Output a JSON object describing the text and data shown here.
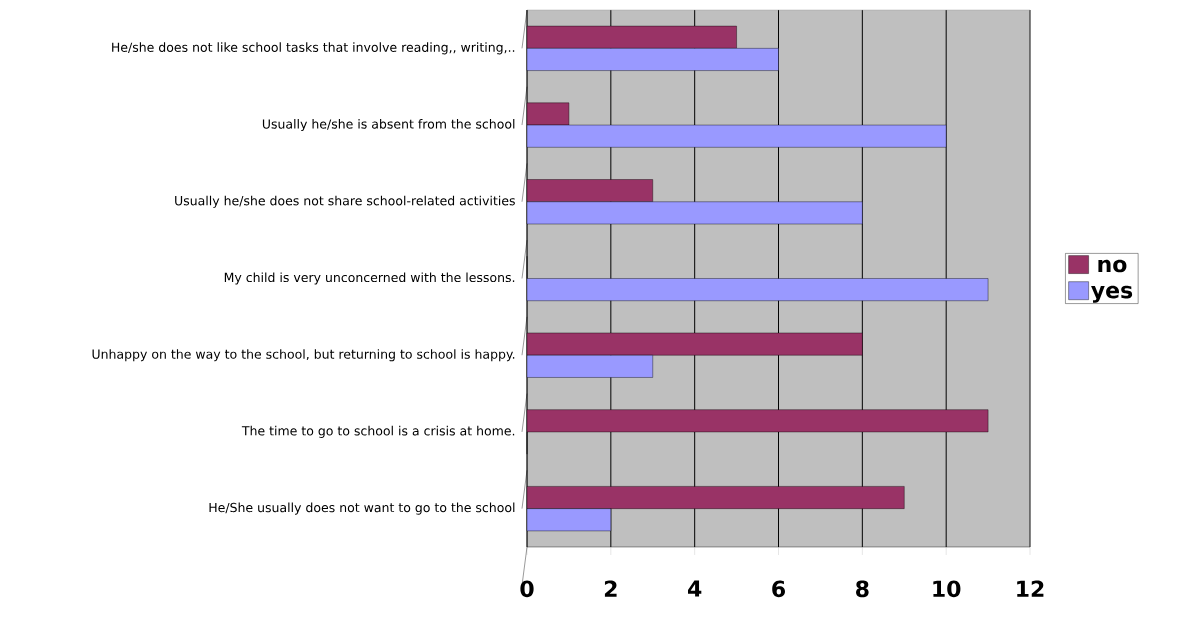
{
  "chart_data": {
    "type": "bar",
    "orientation": "horizontal",
    "categories": [
      "He/she does not like school tasks that involve reading,, writing,..",
      "Usually he/she is absent from the school",
      "Usually he/she does not share school-related activities",
      "My child is very unconcerned with the lessons.",
      "Unhappy on the way to the school, but returning to school is happy.",
      "The time to go to school is a crisis at home.",
      "He/She usually does not want to go to the school"
    ],
    "series": [
      {
        "name": "no",
        "color": "#993366",
        "values": [
          5,
          1,
          3,
          0,
          8,
          11,
          9
        ]
      },
      {
        "name": "yes",
        "color": "#9999ff",
        "values": [
          6,
          10,
          8,
          11,
          3,
          0,
          2
        ]
      }
    ],
    "xlim": [
      0,
      12
    ],
    "xticks": [
      0,
      2,
      4,
      6,
      8,
      10,
      12
    ],
    "grid": "x",
    "legend": "right"
  }
}
